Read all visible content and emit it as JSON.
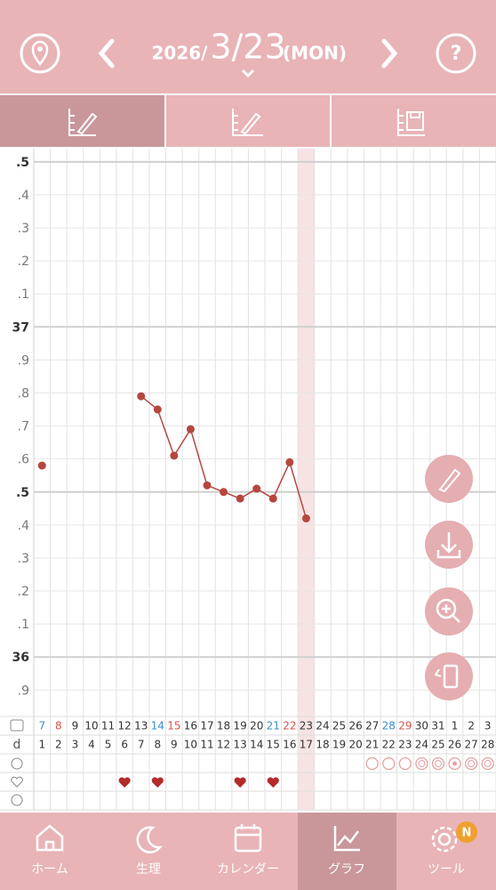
{
  "header": {
    "year": "2026/",
    "date": "3/23",
    "weekday": "(MON)",
    "help": "?"
  },
  "chart_data": {
    "type": "line",
    "categories": [
      "7",
      "8",
      "9",
      "10",
      "11",
      "12",
      "13",
      "14",
      "15",
      "16",
      "17",
      "18",
      "19",
      "20",
      "21",
      "22",
      "23",
      "24",
      "25",
      "26",
      "27",
      "28",
      "29",
      "30",
      "31",
      "1",
      "2",
      "3"
    ],
    "category_colors": [
      "#3a8fd0",
      "#d9534f",
      "#333",
      "#333",
      "#333",
      "#333",
      "#333",
      "#3a8fd0",
      "#d9534f",
      "#333",
      "#333",
      "#333",
      "#333",
      "#333",
      "#3a8fd0",
      "#d9534f",
      "#333",
      "#333",
      "#333",
      "#333",
      "#333",
      "#3a8fd0",
      "#d9534f",
      "#333",
      "#333",
      "#333",
      "#333",
      "#333"
    ],
    "cycle_day_label": "d",
    "cycle_days": [
      1,
      2,
      3,
      4,
      5,
      6,
      7,
      8,
      9,
      10,
      11,
      12,
      13,
      14,
      15,
      16,
      17,
      18,
      19,
      20,
      21,
      22,
      23,
      24,
      25,
      26,
      27,
      28
    ],
    "series": [
      {
        "color": "#b5473f",
        "values": [
          36.58,
          null,
          null,
          null,
          null,
          null,
          36.79,
          36.75,
          36.61,
          36.69,
          36.52,
          36.5,
          36.48,
          36.51,
          36.48,
          36.59,
          36.42,
          null,
          null,
          null,
          null,
          null,
          null,
          null,
          null,
          null,
          null,
          null
        ]
      }
    ],
    "ylim": [
      35.82,
      37.54
    ],
    "yticks": [
      {
        "value": 37.5,
        "label": ".5"
      },
      {
        "value": 37.4,
        "label": ".4"
      },
      {
        "value": 37.3,
        "label": ".3"
      },
      {
        "value": 37.2,
        "label": ".2"
      },
      {
        "value": 37.1,
        "label": ".1"
      },
      37,
      {
        "value": 36.9,
        "label": ".9"
      },
      {
        "value": 36.8,
        "label": ".8"
      },
      {
        "value": 36.7,
        "label": ".7"
      },
      {
        "value": 36.6,
        "label": ".6"
      },
      {
        "value": 36.5,
        "label": ".5"
      },
      {
        "value": 36.4,
        "label": ".4"
      },
      {
        "value": 36.3,
        "label": ".3"
      },
      {
        "value": 36.2,
        "label": ".2"
      },
      {
        "value": 36.1,
        "label": ".1"
      },
      36,
      {
        "value": 35.9,
        "label": ".9"
      }
    ],
    "grid": true
  },
  "nav": [
    "ホーム",
    "生理",
    "カレンダー",
    "グラフ",
    "ツール"
  ],
  "badge": "N"
}
